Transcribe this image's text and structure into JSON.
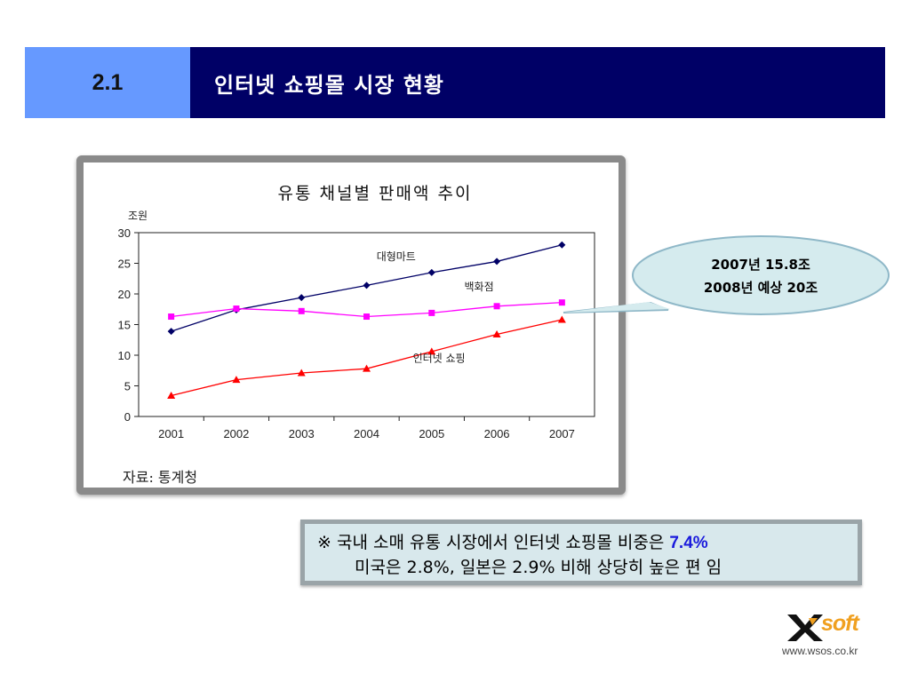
{
  "header": {
    "section_number": "2.1",
    "title": "인터넷 쇼핑몰 시장 현황"
  },
  "colors": {
    "header_number_bg": "#6699ff",
    "header_title_bg": "#000066",
    "series_mart": "#000066",
    "series_dept": "#ff00ff",
    "series_online": "#ff0000",
    "callout_bg": "#d5ebee",
    "highlight": "#1a1adc"
  },
  "chart_data": {
    "type": "line",
    "title": "유통 채널별 판매액 추이",
    "unit_label": "조원",
    "x": [
      "2001",
      "2002",
      "2003",
      "2004",
      "2005",
      "2006",
      "2007"
    ],
    "ylim": [
      0,
      30
    ],
    "y_ticks": [
      "30",
      "25",
      "20",
      "15",
      "10",
      "5",
      "0"
    ],
    "grid": false,
    "series": [
      {
        "name": "대형마트",
        "marker": "diamond",
        "values": [
          13.9,
          17.4,
          19.4,
          21.4,
          23.5,
          25.3,
          28.0
        ]
      },
      {
        "name": "백화점",
        "marker": "square",
        "values": [
          16.3,
          17.6,
          17.2,
          16.3,
          16.9,
          18.0,
          18.6
        ]
      },
      {
        "name": "인터넷 쇼핑",
        "marker": "triangle",
        "values": [
          3.4,
          6.0,
          7.1,
          7.8,
          10.6,
          13.4,
          15.8
        ]
      }
    ],
    "source": "자료: 통계청"
  },
  "callout": {
    "line1": "2007년 15.8조",
    "line2": "2008년 예상 20조"
  },
  "note": {
    "line1_prefix": "※ 국내 소매 유통 시장에서 인터넷 쇼핑몰 비중은 ",
    "line1_highlight": "7.4%",
    "line2": "미국은 2.8%, 일본은 2.9% 비해 상당히 높은 편 임"
  },
  "logo": {
    "wordmark": "soft",
    "url": "www.wsos.co.kr"
  }
}
